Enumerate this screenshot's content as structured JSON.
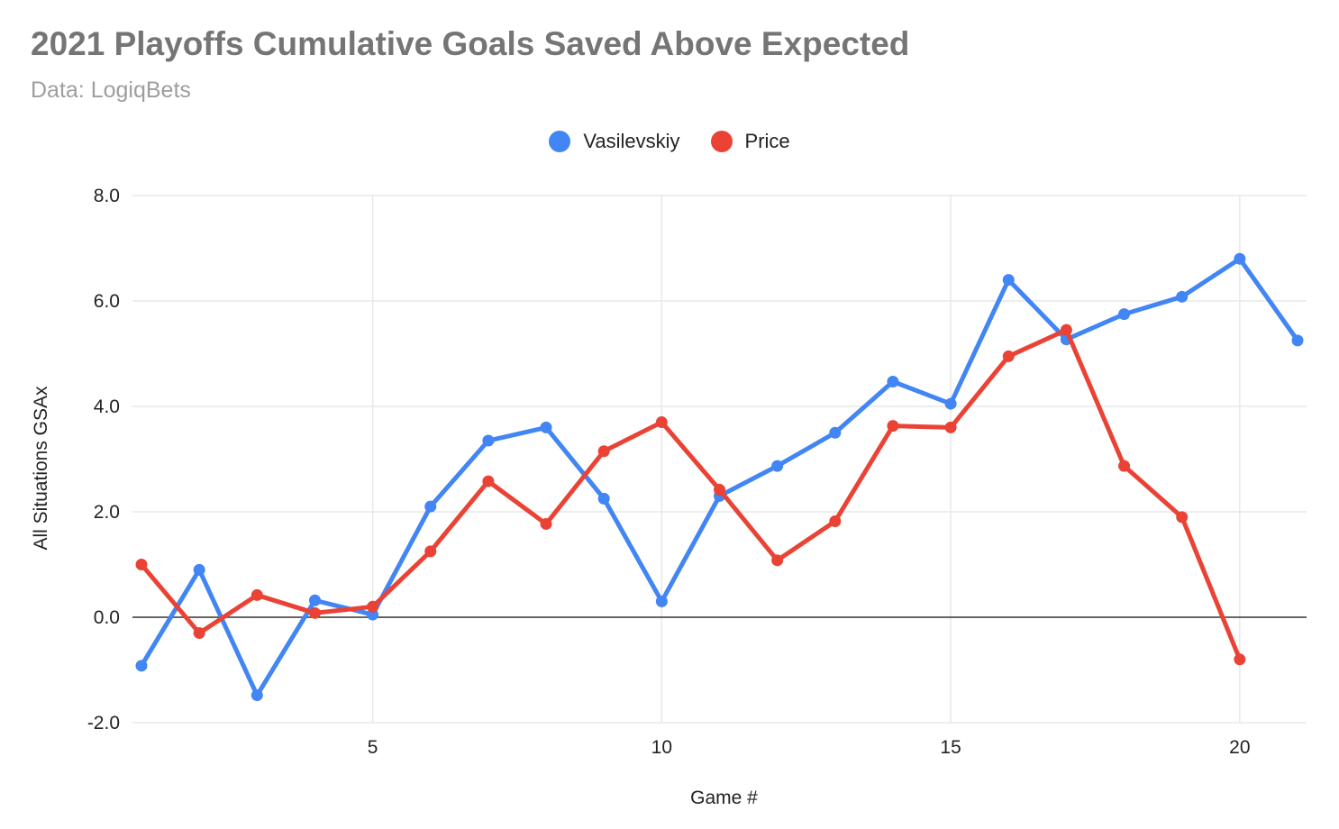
{
  "chart_data": {
    "type": "line",
    "title": "2021 Playoffs Cumulative Goals Saved Above Expected",
    "subtitle": "Data: LogiqBets",
    "xlabel": "Game #",
    "ylabel": "All Situations GSAx",
    "xlim": [
      1,
      21
    ],
    "ylim": [
      -2.0,
      8.0
    ],
    "x_ticks": [
      5,
      10,
      15,
      20
    ],
    "y_ticks": [
      -2.0,
      0.0,
      2.0,
      4.0,
      6.0,
      8.0
    ],
    "y_tick_labels": [
      "-2.0",
      "0.0",
      "2.0",
      "4.0",
      "6.0",
      "8.0"
    ],
    "grid": true,
    "legend_position": "top-center",
    "series": [
      {
        "name": "Vasilevskiy",
        "color": "#4285f4",
        "x": [
          1,
          2,
          3,
          4,
          5,
          6,
          7,
          8,
          9,
          10,
          11,
          12,
          13,
          14,
          15,
          16,
          17,
          18,
          19,
          20,
          21
        ],
        "values": [
          -0.92,
          0.9,
          -1.48,
          0.32,
          0.05,
          2.1,
          3.35,
          3.6,
          2.25,
          0.3,
          2.3,
          2.87,
          3.5,
          4.47,
          4.05,
          6.4,
          5.27,
          5.75,
          6.08,
          6.8,
          5.25
        ]
      },
      {
        "name": "Price",
        "color": "#ea4335",
        "x": [
          1,
          2,
          3,
          4,
          5,
          6,
          7,
          8,
          9,
          10,
          11,
          12,
          13,
          14,
          15,
          16,
          17,
          18,
          19,
          20
        ],
        "values": [
          1.0,
          -0.3,
          0.42,
          0.08,
          0.2,
          1.25,
          2.58,
          1.77,
          3.15,
          3.7,
          2.42,
          1.08,
          1.82,
          3.63,
          3.6,
          4.95,
          5.45,
          2.87,
          1.9,
          -0.8
        ]
      }
    ]
  }
}
